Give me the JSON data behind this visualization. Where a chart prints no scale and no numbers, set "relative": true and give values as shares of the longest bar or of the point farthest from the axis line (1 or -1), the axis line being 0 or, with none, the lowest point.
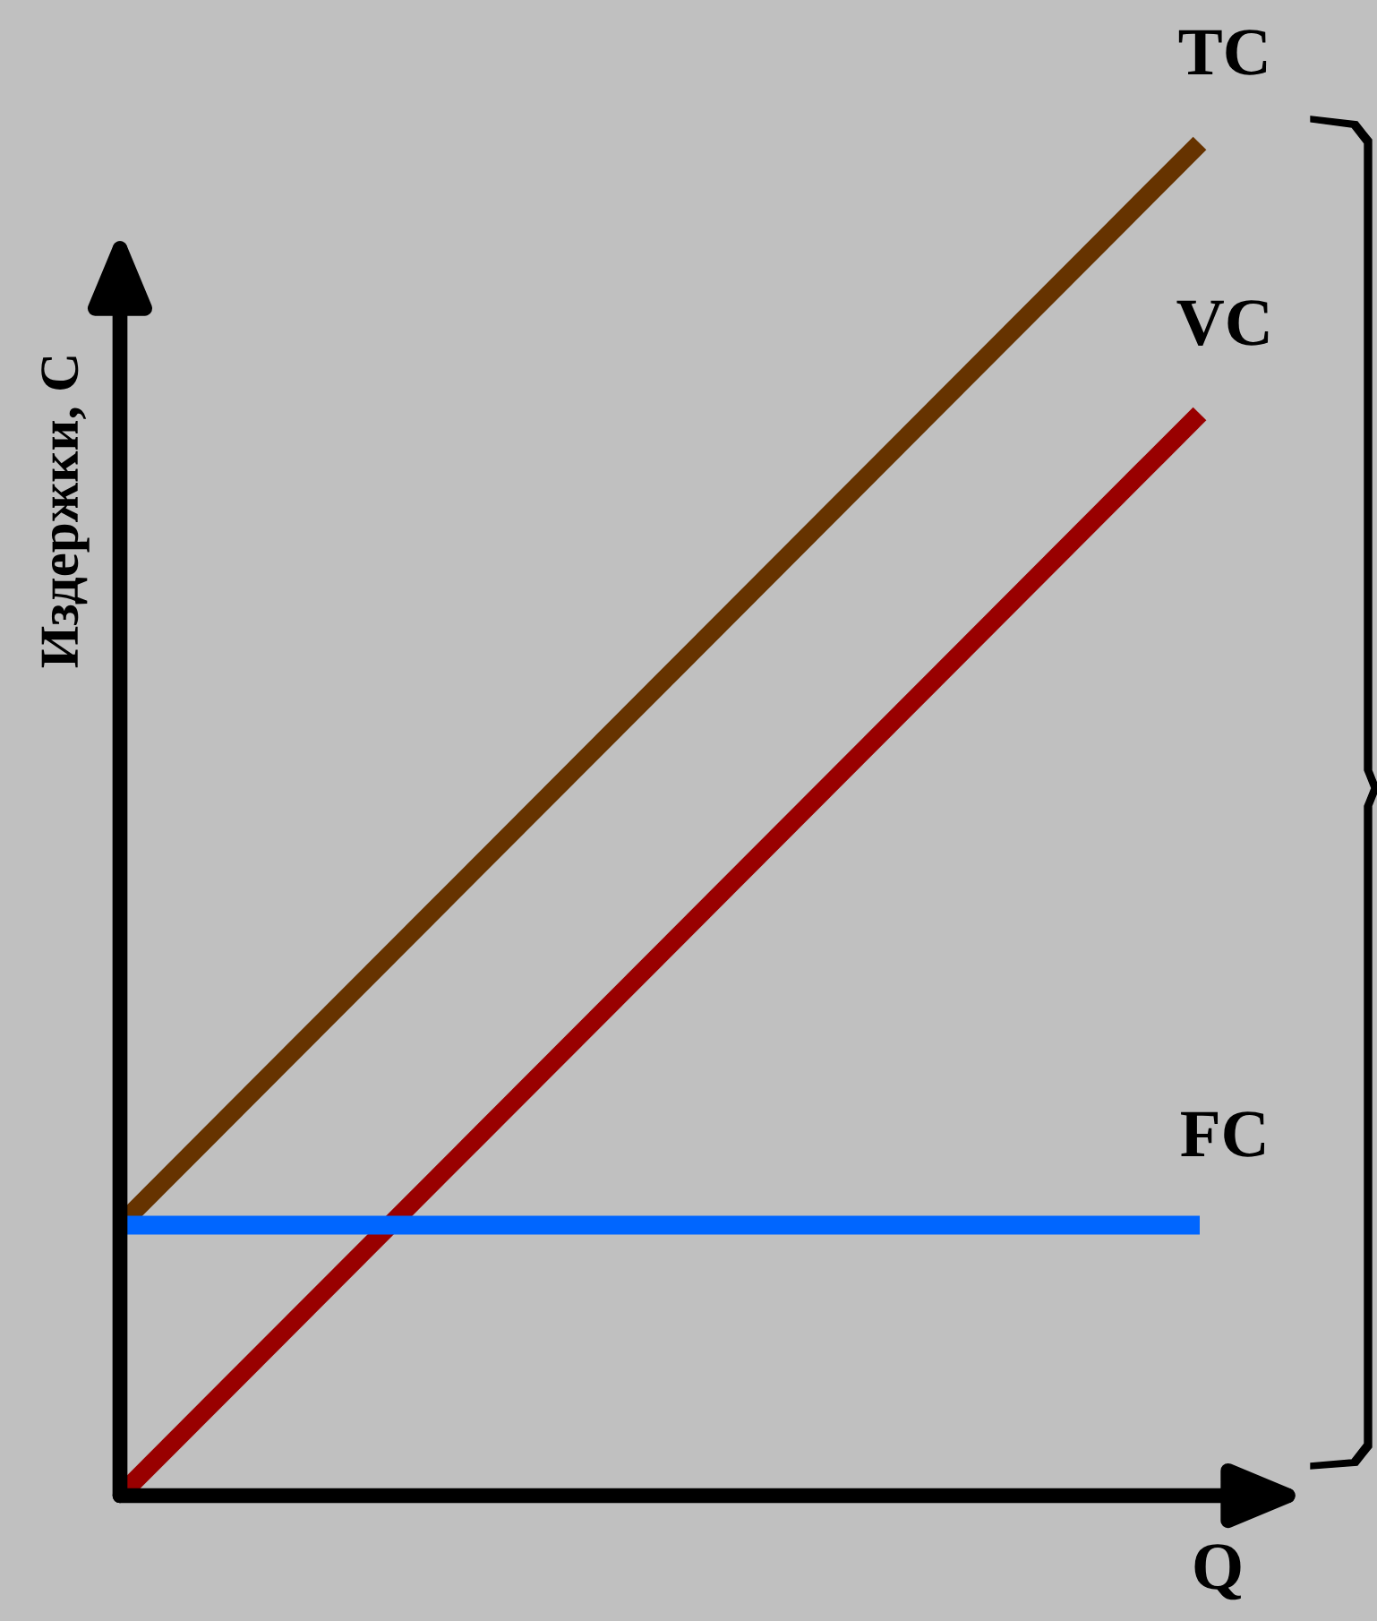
{
  "chart_data": {
    "type": "line",
    "relative": true,
    "xlabel": "Q",
    "ylabel": "Издержки, C",
    "legend": false,
    "categories": [
      null,
      null
    ],
    "series": [
      {
        "name": "TC",
        "color": "#663300",
        "values": [
          0.2,
          1.0
        ]
      },
      {
        "name": "VC",
        "color": "#990000",
        "values": [
          0.0,
          0.8
        ]
      },
      {
        "name": "FC",
        "color": "#0066ff",
        "values": [
          0.2,
          0.2
        ]
      }
    ]
  }
}
